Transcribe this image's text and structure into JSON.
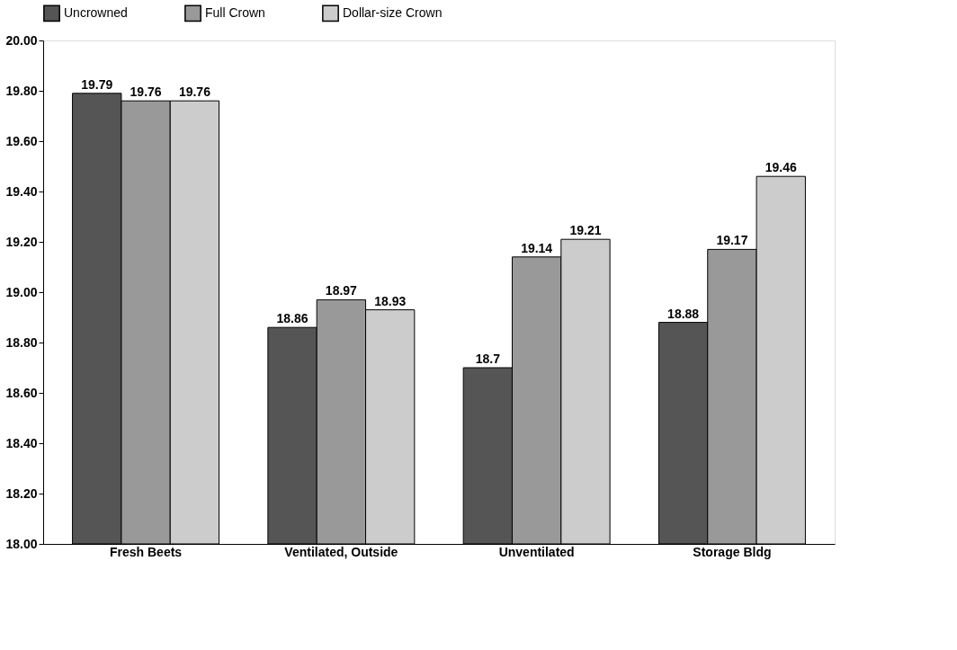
{
  "chart_data": {
    "type": "bar",
    "categories": [
      "Fresh Beets",
      "Ventilated, Outside",
      "Unventilated",
      "Storage Bldg"
    ],
    "series": [
      {
        "name": "Uncrowned",
        "color": "#555555",
        "values": [
          19.79,
          18.86,
          18.7,
          18.88
        ]
      },
      {
        "name": "Full Crown",
        "color": "#999999",
        "values": [
          19.76,
          18.97,
          19.14,
          19.17
        ]
      },
      {
        "name": "Dollar-size Crown",
        "color": "#cccccc",
        "values": [
          19.76,
          18.93,
          19.21,
          19.46
        ]
      }
    ],
    "ylim": [
      18.0,
      20.0
    ],
    "yticks": [
      {
        "value": 18.0,
        "label": "18.00"
      },
      {
        "value": 18.2,
        "label": "18.20"
      },
      {
        "value": 18.4,
        "label": "18.40"
      },
      {
        "value": 18.6,
        "label": "18.60"
      },
      {
        "value": 18.8,
        "label": "18.80"
      },
      {
        "value": 19.0,
        "label": "19.00"
      },
      {
        "value": 19.2,
        "label": "19.20"
      },
      {
        "value": 19.4,
        "label": "19.40"
      },
      {
        "value": 19.6,
        "label": "19.60"
      },
      {
        "value": 19.8,
        "label": "19.80"
      },
      {
        "value": 20.0,
        "label": "20.00"
      }
    ],
    "data_labels": true,
    "grid": false,
    "legend": "top"
  }
}
